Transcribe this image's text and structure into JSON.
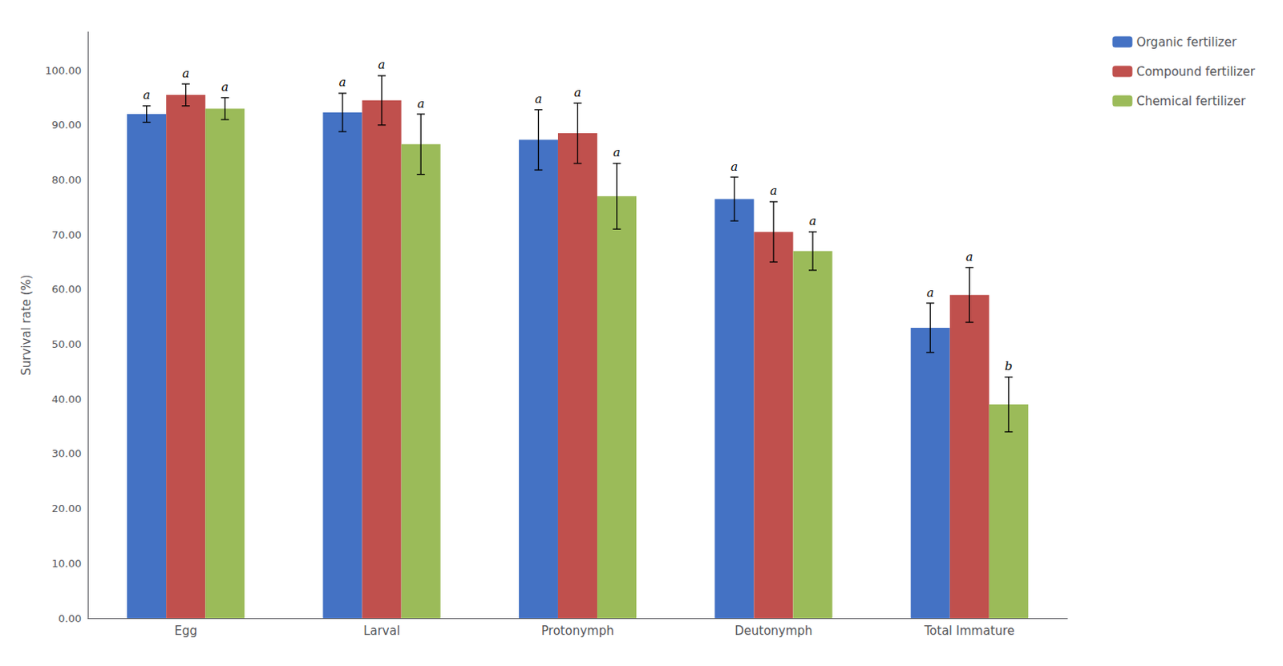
{
  "chart_data": {
    "type": "bar",
    "categories": [
      "Egg",
      "Larval",
      "Protonymph",
      "Deutonymph",
      "Total Immature"
    ],
    "series": [
      {
        "name": "Organic fertilizer",
        "color": "#4472C4",
        "values": [
          92.0,
          92.3,
          87.3,
          76.5,
          53.0
        ],
        "errors": [
          1.5,
          3.5,
          5.5,
          4.0,
          4.5
        ],
        "labels": [
          "a",
          "a",
          "a",
          "a",
          "a"
        ]
      },
      {
        "name": "Compound fertilizer",
        "color": "#C0504D",
        "values": [
          95.5,
          94.5,
          88.5,
          70.5,
          59.0
        ],
        "errors": [
          2.0,
          4.5,
          5.5,
          5.5,
          5.0
        ],
        "labels": [
          "a",
          "a",
          "a",
          "a",
          "a"
        ]
      },
      {
        "name": "Chemical fertilizer",
        "color": "#9BBB59",
        "values": [
          93.0,
          86.5,
          77.0,
          67.0,
          39.0
        ],
        "errors": [
          2.0,
          5.5,
          6.0,
          3.5,
          5.0
        ],
        "labels": [
          "a",
          "a",
          "a",
          "a",
          "b"
        ]
      }
    ],
    "ylabel": "Survival rate (%)",
    "ylim": [
      0,
      107
    ],
    "yticks": [
      {
        "value": 0,
        "label": "0.00"
      },
      {
        "value": 10,
        "label": "10.00"
      },
      {
        "value": 20,
        "label": "20.00"
      },
      {
        "value": 30,
        "label": "30.00"
      },
      {
        "value": 40,
        "label": "40.00"
      },
      {
        "value": 50,
        "label": "50.00"
      },
      {
        "value": 60,
        "label": "60.00"
      },
      {
        "value": 70,
        "label": "70.00"
      },
      {
        "value": 80,
        "label": "80.00"
      },
      {
        "value": 90,
        "label": "90.00"
      },
      {
        "value": 100,
        "label": "100.00"
      }
    ],
    "grid": false,
    "legend": "right"
  }
}
